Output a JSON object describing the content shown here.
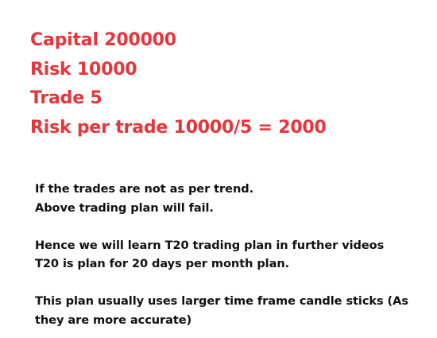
{
  "header": {
    "capital": "Capital 200000",
    "risk": "Risk 10000",
    "trade": "Trade 5",
    "risk_per_trade": "Risk per trade 10000/5 = 2000"
  },
  "notes": {
    "p1_line1": "If the trades are not as per trend.",
    "p1_line2": "Above trading plan will fail.",
    "p2_line1": "Hence we will learn T20 trading plan in further videos",
    "p2_line2": "T20 is plan for 20 days per month plan.",
    "p3_line1": "This plan usually uses larger time frame candle sticks (As",
    "p3_line2": "they are more accurate)"
  },
  "colors": {
    "accent_red": "#e8343b",
    "text": "#111111",
    "background": "#ffffff"
  }
}
